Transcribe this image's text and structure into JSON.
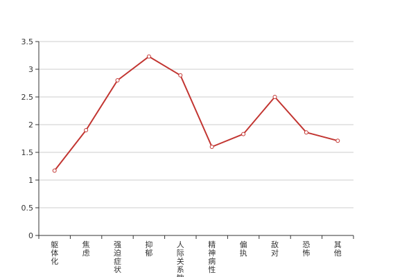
{
  "chart_data": {
    "type": "line",
    "categories": [
      "躯体化",
      "焦虑",
      "强迫症状",
      "抑郁",
      "人际关系敏感",
      "精神病性",
      "偏执",
      "敌对",
      "恐怖",
      "其他"
    ],
    "series": [
      {
        "values": [
          1.17,
          1.9,
          2.8,
          3.23,
          2.89,
          1.6,
          1.83,
          2.5,
          1.86,
          1.71
        ],
        "color": "#c23531"
      }
    ],
    "y_ticks": [
      "0",
      "0.5",
      "1",
      "1.5",
      "2",
      "2.5",
      "3",
      "3.5"
    ],
    "ylim": [
      0,
      3.5
    ],
    "grid": true,
    "legend": false
  }
}
